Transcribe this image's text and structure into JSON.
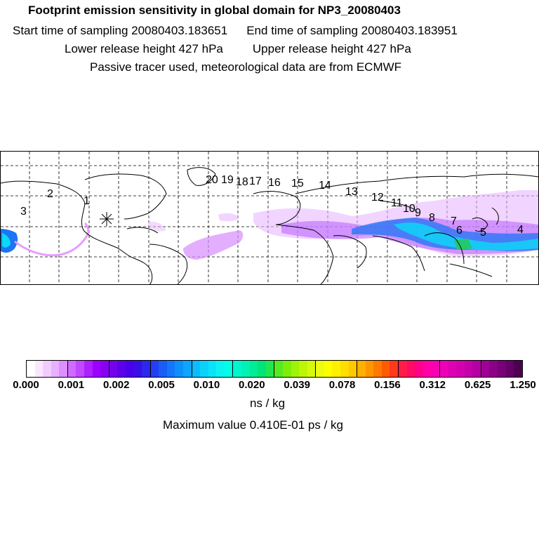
{
  "header": {
    "title": "Footprint emission sensitivity in global domain for NP3_20080403",
    "start_time": "Start time of sampling 20080403.183651",
    "end_time": "End time of sampling 20080403.183951",
    "lower_height": "Lower release height  427 hPa",
    "upper_height": "Upper release height  427 hPa",
    "tracer_note": "Passive tracer used, meteorological data are from ECMWF"
  },
  "map": {
    "trajectory_labels": [
      "20",
      "19",
      "18",
      "17",
      "16",
      "15",
      "14",
      "13",
      "12",
      "11",
      "10",
      "9",
      "8",
      "7",
      "6",
      "5",
      "4",
      "3",
      "2",
      "1"
    ],
    "release_marker": "release-site-asterisk"
  },
  "colorbar": {
    "tick_labels": [
      "0.000",
      "0.001",
      "0.002",
      "0.005",
      "0.010",
      "0.020",
      "0.039",
      "0.078",
      "0.156",
      "0.312",
      "0.625",
      "1.250"
    ],
    "colors": [
      "#ffffff",
      "#fbe6ff",
      "#f3ccff",
      "#e9b0ff",
      "#dc90ff",
      "#cf6cff",
      "#c048ff",
      "#ad20ff",
      "#9d00ff",
      "#8a00f5",
      "#7400ee",
      "#5d00ea",
      "#4a00e8",
      "#3b0ee8",
      "#2c28ee",
      "#2240f2",
      "#1a5cf6",
      "#1476fa",
      "#0e90fc",
      "#0ca6fc",
      "#0bbdfc",
      "#0bd2fb",
      "#0ae4f8",
      "#0af3f2",
      "#00ffe6",
      "#00f7cc",
      "#00f2b3",
      "#00ec96",
      "#00e578",
      "#22e650",
      "#55ea22",
      "#7dee0a",
      "#a0f208",
      "#bcf508",
      "#d6f80a",
      "#ecfb14",
      "#fdff00",
      "#fff000",
      "#ffde00",
      "#ffc800",
      "#ffb000",
      "#ff9600",
      "#ff7a00",
      "#ff5a00",
      "#ff3a1c",
      "#ff1c46",
      "#ff0a66",
      "#ff008a",
      "#ff00a8",
      "#fa00b4",
      "#ee00b8",
      "#e000b4",
      "#d400b0",
      "#c400aa",
      "#b400a2",
      "#a00096",
      "#8c0088",
      "#780078",
      "#640068",
      "#4d0050"
    ],
    "units": "ns / kg",
    "max_value": "Maximum value  0.410E-01 ps / kg"
  }
}
